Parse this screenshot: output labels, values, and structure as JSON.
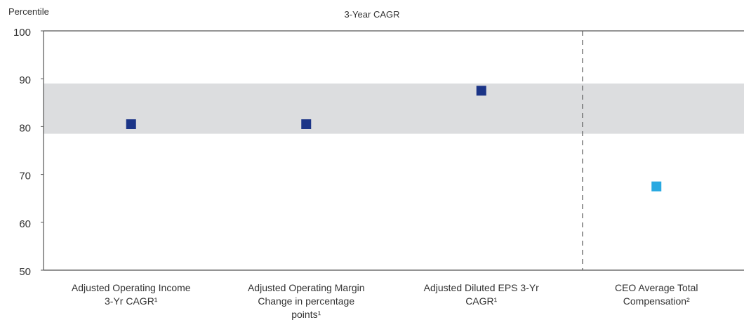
{
  "chart_data": {
    "type": "scatter",
    "title": "3-Year CAGR",
    "y_label": "Percentile",
    "categories": [
      "Adjusted Operating Income 3-Yr CAGR¹",
      "Adjusted Operating Margin Change in percentage points¹",
      "Adjusted Diluted EPS 3-Yr CAGR¹",
      "CEO Average Total Compensation²"
    ],
    "values": [
      80.5,
      80.5,
      87.5,
      67.5
    ],
    "colors": [
      "#1b3487",
      "#1b3487",
      "#1b3487",
      "#29a9e1"
    ],
    "band": [
      78.5,
      89
    ],
    "band_color": "#dcdddf",
    "ylim": [
      50,
      100
    ],
    "yticks": [
      50,
      60,
      70,
      80,
      90,
      100
    ],
    "grid": false
  }
}
